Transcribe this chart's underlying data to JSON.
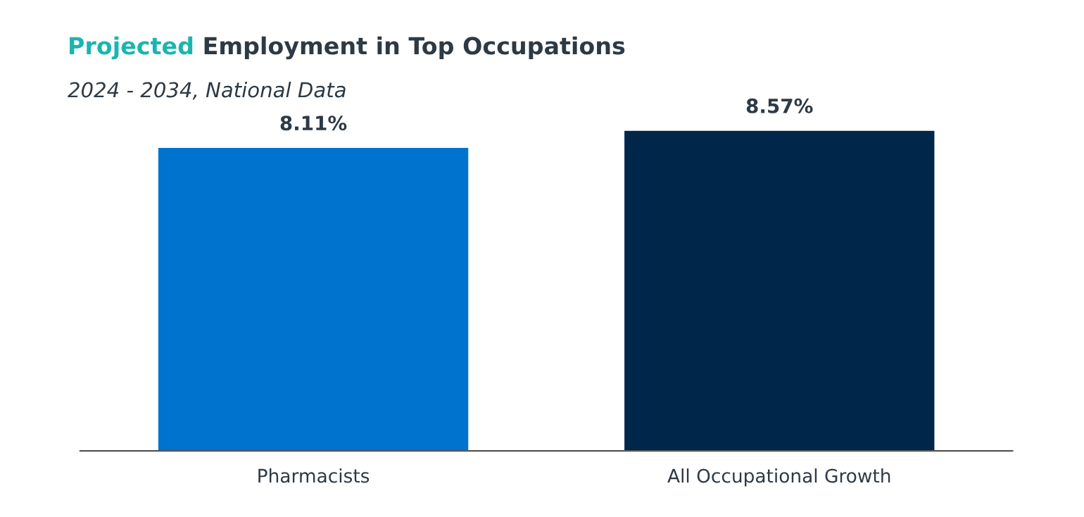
{
  "chart_data": {
    "type": "bar",
    "title": "Projected Employment in Top Occupations",
    "subtitle": "2024 - 2034, National Data",
    "categories": [
      "Pharmacists",
      "All Occupational Growth"
    ],
    "values": [
      8.11,
      8.57
    ],
    "colors": [
      "#0073cf",
      "#00264a"
    ],
    "value_labels": [
      "8.11%",
      "8.57%"
    ],
    "grid": false,
    "legend": false,
    "tick_labels": "x"
  }
}
